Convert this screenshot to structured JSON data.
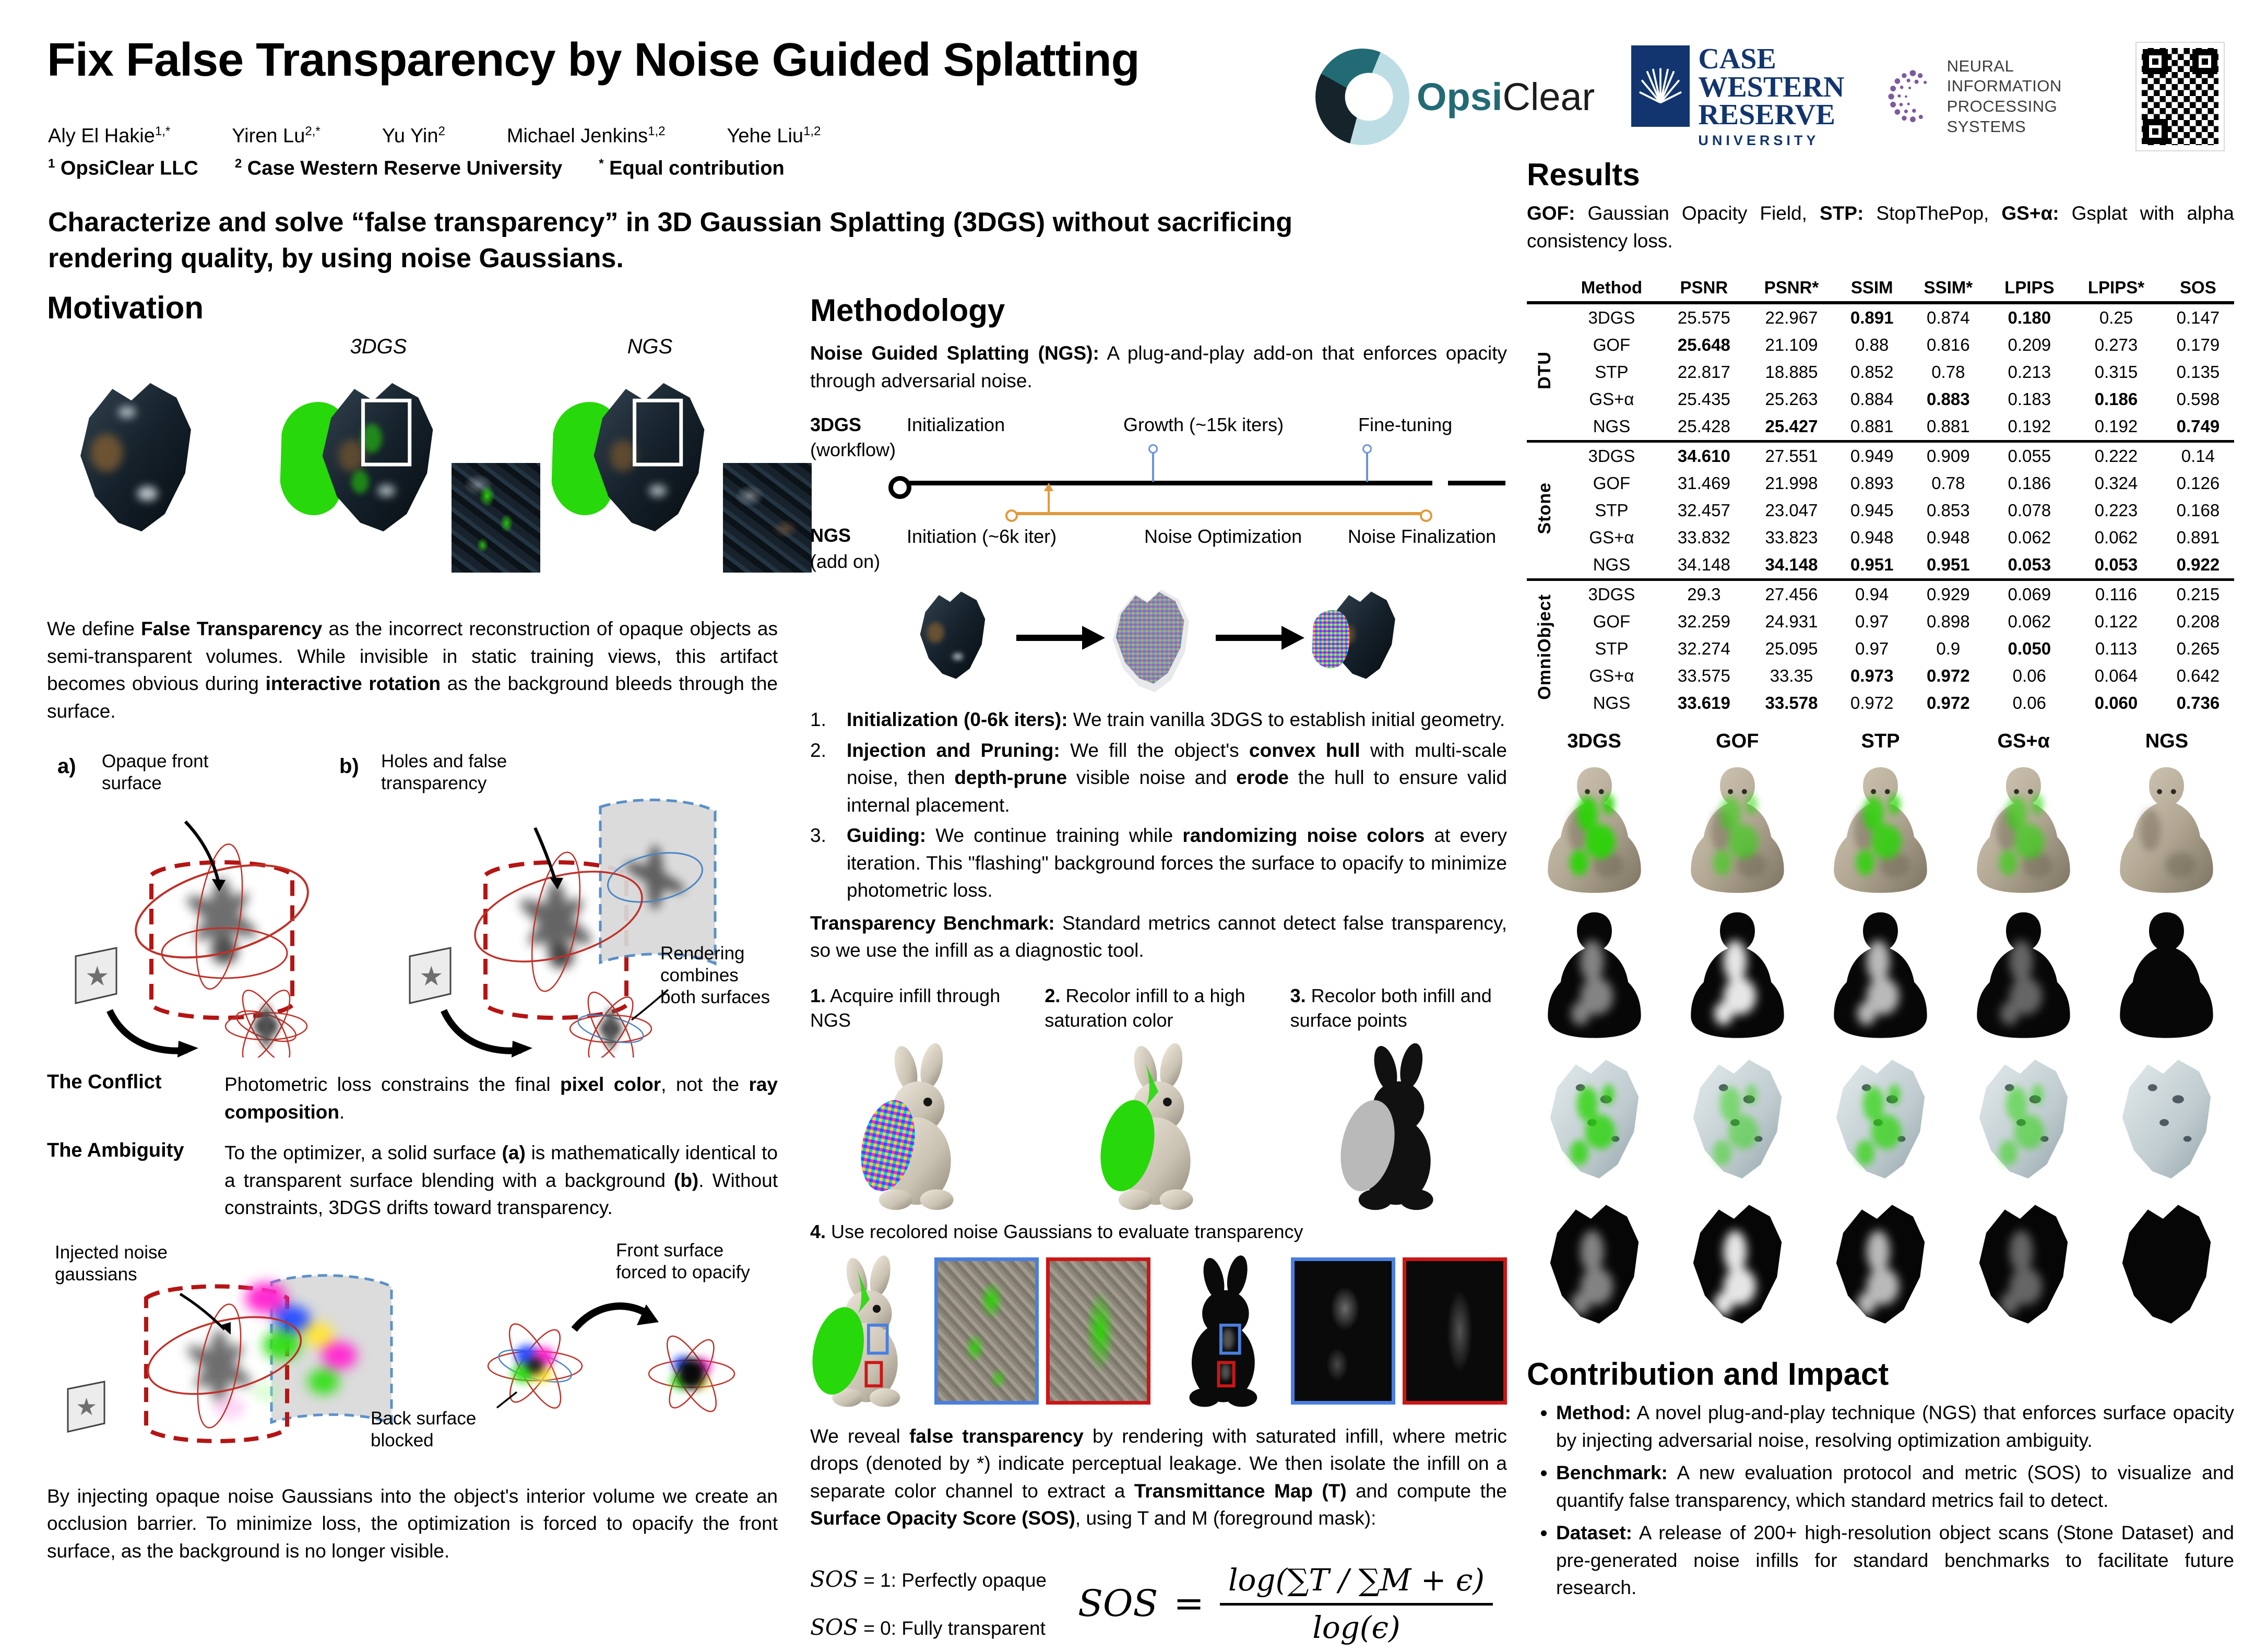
{
  "header": {
    "title": "Fix False Transparency by Noise Guided Splatting",
    "authors": [
      {
        "name": "Aly El Hakie",
        "sup": "1,*"
      },
      {
        "name": "Yiren Lu",
        "sup": "2,*"
      },
      {
        "name": "Yu Yin",
        "sup": "2"
      },
      {
        "name": "Michael Jenkins",
        "sup": "1,2"
      },
      {
        "name": "Yehe Liu",
        "sup": "1,2"
      }
    ],
    "affiliations": [
      {
        "sup": "1",
        "text": "OpsiClear LLC"
      },
      {
        "sup": "2",
        "text": "Case Western Reserve University"
      },
      {
        "sup": "*",
        "text": "Equal contribution"
      }
    ],
    "tagline": "Characterize and solve “false transparency” in 3D Gaussian Splatting (3DGS) without sacrificing rendering quality, by using noise Gaussians."
  },
  "logos": {
    "opsiclear": {
      "part1": "Opsi",
      "part2": "Clear"
    },
    "cwru": {
      "lines": [
        "CASE",
        "WESTERN",
        "RESERVE"
      ],
      "sub": "UNIVERSITY"
    },
    "neurips": {
      "line1": "NEURAL INFORMATION",
      "line2": "PROCESSING SYSTEMS"
    },
    "qr": {
      "label": "qr-code"
    }
  },
  "motivation": {
    "heading": "Motivation",
    "figure": {
      "left_label": "3DGS",
      "right_label": "NGS"
    },
    "intro": [
      {
        "t": "We define "
      },
      {
        "t": "False Transparency",
        "b": true
      },
      {
        "t": " as the incorrect reconstruction of opaque objects as semi-transparent volumes. While invisible in static training views, this artifact becomes obvious during "
      },
      {
        "t": "interactive rotation",
        "b": true
      },
      {
        "t": " as the background bleeds through the surface."
      }
    ],
    "diagram_ab": {
      "a_tag": "a)",
      "a_label": "Opaque front surface",
      "b_tag": "b)",
      "b_label": "Holes and false transparency",
      "render_label": "Rendering combines both surfaces"
    },
    "conflict_term": "The Conflict",
    "conflict_text": [
      {
        "t": "Photometric loss constrains the final "
      },
      {
        "t": "pixel color",
        "b": true
      },
      {
        "t": ", not the "
      },
      {
        "t": "ray composition",
        "b": true
      },
      {
        "t": "."
      }
    ],
    "ambiguity_term": "The Ambiguity",
    "ambiguity_text": [
      {
        "t": "To the optimizer, a solid surface "
      },
      {
        "t": "(a)",
        "b": true
      },
      {
        "t": " is mathematically identical to a transparent surface blending with a background "
      },
      {
        "t": "(b)",
        "b": true
      },
      {
        "t": ". Without constraints, 3DGS drifts toward transparency."
      }
    ],
    "noise_diagram": {
      "injected": "Injected noise gaussians",
      "front": "Front surface forced to opacify",
      "back": "Back surface blocked"
    },
    "outro": "By injecting opaque noise Gaussians into the object's interior volume we create an occlusion barrier. To minimize loss, the optimization is forced to opacify the front surface, as the background is no longer visible."
  },
  "methodology": {
    "heading": "Methodology",
    "intro": [
      {
        "t": "Noise Guided Splatting (NGS):",
        "b": true
      },
      {
        "t": " A plug-and-play add-on that enforces opacity through adversarial noise."
      }
    ],
    "timeline": {
      "top_name": "3DGS",
      "top_sub": "(workflow)",
      "top_stages": [
        "Initialization",
        "Growth (~15k iters)",
        "Fine-tuning"
      ],
      "bottom_name": "NGS",
      "bottom_sub": "(add on)",
      "bottom_stages": [
        "Initiation (~6k iter)",
        "Noise Optimization",
        "Noise Finalization"
      ]
    },
    "steps": [
      {
        "n": "1.",
        "text": [
          {
            "t": "Initialization (0-6k iters):",
            "b": true
          },
          {
            "t": " We train vanilla 3DGS to establish initial geometry."
          }
        ]
      },
      {
        "n": "2.",
        "text": [
          {
            "t": "Injection and Pruning:",
            "b": true
          },
          {
            "t": " We fill the object's "
          },
          {
            "t": "convex hull",
            "b": true
          },
          {
            "t": " with multi-scale noise, then "
          },
          {
            "t": "depth-prune",
            "b": true
          },
          {
            "t": " visible noise and "
          },
          {
            "t": "erode",
            "b": true
          },
          {
            "t": " the hull to ensure valid internal placement."
          }
        ]
      },
      {
        "n": "3.",
        "text": [
          {
            "t": "Guiding:",
            "b": true
          },
          {
            "t": " We continue training while "
          },
          {
            "t": "randomizing noise colors",
            "b": true
          },
          {
            "t": " at every iteration. This \"flashing\" background forces the surface to opacify to minimize photometric loss."
          }
        ]
      }
    ],
    "benchmark": [
      {
        "t": "Transparency Benchmark:",
        "b": true
      },
      {
        "t": " Standard metrics cannot detect false transparency, so we use the infill as a diagnostic tool."
      }
    ],
    "protocol": [
      {
        "n": "1.",
        "text": " Acquire infill through NGS"
      },
      {
        "n": "2.",
        "text": " Recolor infill to a high saturation color"
      },
      {
        "n": "3.",
        "text": " Recolor both infill and surface points"
      },
      {
        "n": "4.",
        "text": " Use recolored noise Gaussians to evaluate transparency"
      }
    ],
    "reveal": [
      {
        "t": "We reveal "
      },
      {
        "t": "false transparency",
        "b": true
      },
      {
        "t": " by rendering with saturated infill, where metric drops (denoted by *) indicate perceptual leakage. We then isolate the infill on a separate color channel to extract a "
      },
      {
        "t": "Transmittance Map (T)",
        "b": true
      },
      {
        "t": " and compute the "
      },
      {
        "t": "Surface Opacity Score (SOS)",
        "b": true
      },
      {
        "t": ", using T and M (foreground mask):"
      }
    ],
    "sos_legend": [
      {
        "math": "SOS",
        "rest": " = 1: Perfectly opaque"
      },
      {
        "math": "SOS",
        "rest": " = 0: Fully transparent"
      }
    ],
    "formula": {
      "lhs": "SOS",
      "eq": "=",
      "num": "log(∑T ∕ ∑M + ϵ)",
      "den": "log(ϵ)"
    }
  },
  "results": {
    "heading": "Results",
    "note": [
      {
        "t": "GOF:",
        "b": true
      },
      {
        "t": " Gaussian Opacity Field, "
      },
      {
        "t": "STP:",
        "b": true
      },
      {
        "t": " StopThePop, "
      },
      {
        "t": "GS+α:",
        "b": true
      },
      {
        "t": " Gsplat with alpha consistency loss."
      }
    ],
    "table": {
      "columns": [
        "Method",
        "PSNR",
        "PSNR*",
        "SSIM",
        "SSIM*",
        "LPIPS",
        "LPIPS*",
        "SOS"
      ],
      "groups": [
        {
          "label": "DTU",
          "rows": [
            {
              "method": "3DGS",
              "values": [
                "25.575",
                "22.967",
                "0.891",
                "0.874",
                "0.180",
                "0.25",
                "0.147"
              ],
              "bold": [
                2,
                4
              ]
            },
            {
              "method": "GOF",
              "values": [
                "25.648",
                "21.109",
                "0.88",
                "0.816",
                "0.209",
                "0.273",
                "0.179"
              ],
              "bold": [
                0
              ]
            },
            {
              "method": "STP",
              "values": [
                "22.817",
                "18.885",
                "0.852",
                "0.78",
                "0.213",
                "0.315",
                "0.135"
              ],
              "bold": []
            },
            {
              "method": "GS+α",
              "values": [
                "25.435",
                "25.263",
                "0.884",
                "0.883",
                "0.183",
                "0.186",
                "0.598"
              ],
              "bold": [
                3,
                5
              ]
            },
            {
              "method": "NGS",
              "values": [
                "25.428",
                "25.427",
                "0.881",
                "0.881",
                "0.192",
                "0.192",
                "0.749"
              ],
              "bold": [
                1,
                6
              ]
            }
          ]
        },
        {
          "label": "Stone",
          "rows": [
            {
              "method": "3DGS",
              "values": [
                "34.610",
                "27.551",
                "0.949",
                "0.909",
                "0.055",
                "0.222",
                "0.14"
              ],
              "bold": [
                0
              ]
            },
            {
              "method": "GOF",
              "values": [
                "31.469",
                "21.998",
                "0.893",
                "0.78",
                "0.186",
                "0.324",
                "0.126"
              ],
              "bold": []
            },
            {
              "method": "STP",
              "values": [
                "32.457",
                "23.047",
                "0.945",
                "0.853",
                "0.078",
                "0.223",
                "0.168"
              ],
              "bold": []
            },
            {
              "method": "GS+α",
              "values": [
                "33.832",
                "33.823",
                "0.948",
                "0.948",
                "0.062",
                "0.062",
                "0.891"
              ],
              "bold": []
            },
            {
              "method": "NGS",
              "values": [
                "34.148",
                "34.148",
                "0.951",
                "0.951",
                "0.053",
                "0.053",
                "0.922"
              ],
              "bold": [
                1,
                2,
                3,
                4,
                5,
                6
              ]
            }
          ]
        },
        {
          "label": "OmniObject",
          "rows": [
            {
              "method": "3DGS",
              "values": [
                "29.3",
                "27.456",
                "0.94",
                "0.929",
                "0.069",
                "0.116",
                "0.215"
              ],
              "bold": []
            },
            {
              "method": "GOF",
              "values": [
                "32.259",
                "24.931",
                "0.97",
                "0.898",
                "0.062",
                "0.122",
                "0.208"
              ],
              "bold": []
            },
            {
              "method": "STP",
              "values": [
                "32.274",
                "25.095",
                "0.97",
                "0.9",
                "0.050",
                "0.113",
                "0.265"
              ],
              "bold": [
                4
              ]
            },
            {
              "method": "GS+α",
              "values": [
                "33.575",
                "33.35",
                "0.973",
                "0.972",
                "0.06",
                "0.064",
                "0.642"
              ],
              "bold": [
                2,
                3
              ]
            },
            {
              "method": "NGS",
              "values": [
                "33.619",
                "33.578",
                "0.972",
                "0.972",
                "0.06",
                "0.060",
                "0.736"
              ],
              "bold": [
                0,
                1,
                3,
                5,
                6
              ]
            }
          ]
        }
      ]
    },
    "qualitative": {
      "columns": [
        "3DGS",
        "GOF",
        "STP",
        "GS+α",
        "NGS"
      ],
      "rows": [
        "render-buddha",
        "mask-buddha",
        "render-rock",
        "mask-rock"
      ],
      "leak_strength": [
        0.9,
        0.55,
        0.8,
        0.6,
        0
      ],
      "mask_strength": [
        0.5,
        0.9,
        0.72,
        0.38,
        0
      ]
    }
  },
  "contribution": {
    "heading": "Contribution and Impact",
    "items": [
      [
        {
          "t": "Method:",
          "b": true
        },
        {
          "t": " A novel plug-and-play technique (NGS) that enforces surface opacity by injecting adversarial noise, resolving optimization ambiguity."
        }
      ],
      [
        {
          "t": "Benchmark:",
          "b": true
        },
        {
          "t": " A new evaluation protocol and metric (SOS) to visualize and quantify false transparency, which standard metrics fail to detect."
        }
      ],
      [
        {
          "t": "Dataset:",
          "b": true
        },
        {
          "t": " A release of 200+ high-resolution object scans (Stone Dataset) and pre-generated noise infills for standard benchmarks to facilitate future research."
        }
      ]
    ]
  },
  "colors": {
    "leak_green": "#27d80a",
    "timeline_orange": "#e09a3c",
    "timeline_blue": "#6a93dd",
    "dashed_red": "#b51414",
    "dashed_blue": "#4a86c4",
    "neurips_purple": "#7d5a9e",
    "cwru_navy": "#12356f",
    "opsiclear_teal": "#226b74"
  }
}
